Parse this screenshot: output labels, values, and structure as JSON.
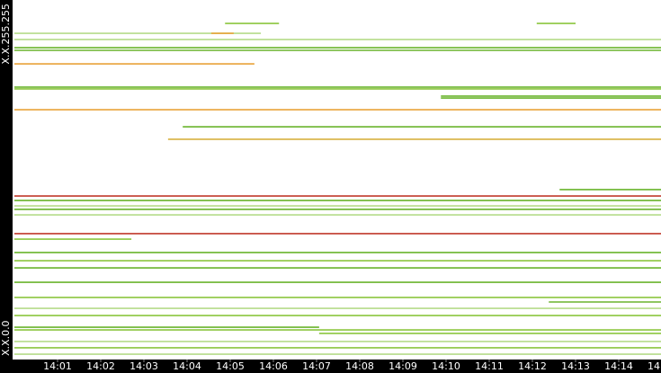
{
  "chart_data": {
    "type": "timeline",
    "xlim": [
      0,
      14.98
    ],
    "ylim": [
      0,
      255
    ],
    "xticks": [
      {
        "value": 1,
        "label": "14:01"
      },
      {
        "value": 2,
        "label": "14:02"
      },
      {
        "value": 3,
        "label": "14:03"
      },
      {
        "value": 4,
        "label": "14:04"
      },
      {
        "value": 5,
        "label": "14:05"
      },
      {
        "value": 6,
        "label": "14:06"
      },
      {
        "value": 7,
        "label": "14:07"
      },
      {
        "value": 8,
        "label": "14:08"
      },
      {
        "value": 9,
        "label": "14:09"
      },
      {
        "value": 10,
        "label": "14:10"
      },
      {
        "value": 11,
        "label": "14:11"
      },
      {
        "value": 12,
        "label": "14:12"
      },
      {
        "value": 13,
        "label": "14:13"
      },
      {
        "value": 14,
        "label": "14:14"
      },
      {
        "value": 15,
        "label": "14"
      }
    ],
    "yticks": [
      {
        "value": 255,
        "label": "X.X.255.255"
      },
      {
        "value": 0,
        "label": "X.X.0.0"
      }
    ],
    "segments": [
      {
        "y": 238.4,
        "x": [
          4.88,
          6.13
        ],
        "color": "#8cc63f"
      },
      {
        "y": 238.4,
        "x": [
          12.1,
          13.0
        ],
        "color": "#8cc63f"
      },
      {
        "y": 231.4,
        "x": [
          0,
          5.71
        ],
        "color": "#b5dc8a"
      },
      {
        "y": 231.4,
        "x": [
          4.56,
          5.08
        ],
        "color": "#e8a33a"
      },
      {
        "y": 227.0,
        "x": [
          0,
          14.98
        ],
        "color": "#b5dc8a"
      },
      {
        "y": 221.2,
        "x": [
          0,
          14.98
        ],
        "color": "#6ab42d"
      },
      {
        "y": 219.3,
        "x": [
          0,
          14.98
        ],
        "color": "#6ab42d"
      },
      {
        "y": 209.7,
        "x": [
          0,
          5.56
        ],
        "color": "#e8a33a"
      },
      {
        "y": 193.2,
        "x": [
          0,
          14.98
        ],
        "color": "#6ab42d"
      },
      {
        "y": 191.9,
        "x": [
          0,
          14.98
        ],
        "color": "#8cc63f"
      },
      {
        "y": 186.8,
        "x": [
          9.88,
          14.98
        ],
        "color": "#6ab42d"
      },
      {
        "y": 185.5,
        "x": [
          9.88,
          14.98
        ],
        "color": "#6ab42d"
      },
      {
        "y": 177.2,
        "x": [
          0,
          14.98
        ],
        "color": "#e8a33a"
      },
      {
        "y": 165.1,
        "x": [
          3.9,
          14.98
        ],
        "color": "#6ab42d"
      },
      {
        "y": 156.2,
        "x": [
          3.56,
          14.98
        ],
        "color": "#d7b040"
      },
      {
        "y": 120.5,
        "x": [
          12.63,
          14.98
        ],
        "color": "#6ab42d"
      },
      {
        "y": 116.0,
        "x": [
          0,
          14.98
        ],
        "color": "#c0392b"
      },
      {
        "y": 112.8,
        "x": [
          0,
          14.98
        ],
        "color": "#6ab42d"
      },
      {
        "y": 109.0,
        "x": [
          0,
          14.98
        ],
        "color": "#b5dc8a"
      },
      {
        "y": 106.5,
        "x": [
          0,
          14.98
        ],
        "color": "#6ab42d"
      },
      {
        "y": 102.6,
        "x": [
          0,
          14.98
        ],
        "color": "#b5dc8a"
      },
      {
        "y": 89.3,
        "x": [
          0,
          14.98
        ],
        "color": "#c0392b"
      },
      {
        "y": 85.4,
        "x": [
          0,
          2.71
        ],
        "color": "#8cc63f"
      },
      {
        "y": 75.9,
        "x": [
          0,
          14.98
        ],
        "color": "#6ab42d"
      },
      {
        "y": 70.1,
        "x": [
          0,
          14.98
        ],
        "color": "#8cc63f"
      },
      {
        "y": 65.0,
        "x": [
          0,
          14.98
        ],
        "color": "#6ab42d"
      },
      {
        "y": 54.8,
        "x": [
          0,
          14.98
        ],
        "color": "#6ab42d"
      },
      {
        "y": 44.0,
        "x": [
          0,
          14.98
        ],
        "color": "#8cc63f"
      },
      {
        "y": 40.8,
        "x": [
          12.38,
          14.98
        ],
        "color": "#6ab42d"
      },
      {
        "y": 36.3,
        "x": [
          0,
          14.98
        ],
        "color": "#b5dc8a"
      },
      {
        "y": 31.2,
        "x": [
          0,
          14.98
        ],
        "color": "#8cc63f"
      },
      {
        "y": 22.9,
        "x": [
          0,
          7.06
        ],
        "color": "#6ab42d"
      },
      {
        "y": 21.0,
        "x": [
          0,
          14.98
        ],
        "color": "#8cc63f"
      },
      {
        "y": 18.5,
        "x": [
          7.06,
          14.98
        ],
        "color": "#8cc63f"
      },
      {
        "y": 12.8,
        "x": [
          0,
          14.98
        ],
        "color": "#b5dc8a"
      },
      {
        "y": 8.3,
        "x": [
          0,
          14.98
        ],
        "color": "#8cc63f"
      },
      {
        "y": 3.8,
        "x": [
          0,
          14.98
        ],
        "color": "#b5dc8a"
      }
    ]
  }
}
